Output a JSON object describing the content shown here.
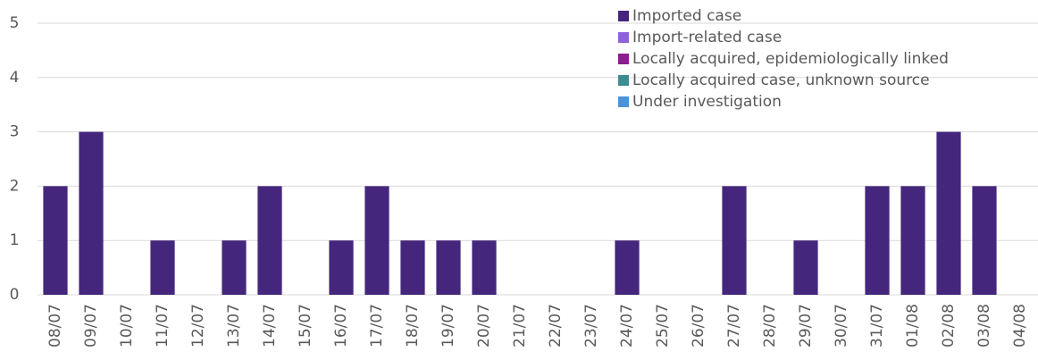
{
  "chart_data": {
    "type": "stacked_bar",
    "categories": [
      "08/07",
      "09/07",
      "10/07",
      "11/07",
      "12/07",
      "13/07",
      "14/07",
      "15/07",
      "16/07",
      "17/07",
      "18/07",
      "19/07",
      "20/07",
      "21/07",
      "22/07",
      "23/07",
      "24/07",
      "25/07",
      "26/07",
      "27/07",
      "28/07",
      "29/07",
      "30/07",
      "31/07",
      "01/08",
      "02/08",
      "03/08",
      "04/08"
    ],
    "series": [
      {
        "name": "Imported case",
        "color": "#44277c",
        "values": [
          2,
          3,
          0,
          1,
          0,
          1,
          2,
          0,
          1,
          2,
          1,
          1,
          1,
          0,
          0,
          0,
          1,
          0,
          0,
          2,
          0,
          1,
          0,
          2,
          2,
          3,
          2,
          0
        ]
      },
      {
        "name": "Import-related case",
        "color": "#8e63d8",
        "values": [
          0,
          0,
          0,
          0,
          0,
          0,
          0,
          0,
          0,
          0,
          0,
          0,
          0,
          0,
          0,
          0,
          0,
          0,
          0,
          0,
          0,
          0,
          0,
          0,
          0,
          0,
          0,
          0
        ]
      },
      {
        "name": "Locally acquired, epidemiologically linked",
        "color": "#8c1d8c",
        "values": [
          0,
          0,
          0,
          0,
          0,
          0,
          0,
          0,
          0,
          0,
          0,
          0,
          0,
          0,
          0,
          0,
          0,
          0,
          0,
          0,
          0,
          0,
          0,
          0,
          0,
          0,
          0,
          0
        ]
      },
      {
        "name": "Locally acquired case, unknown source",
        "color": "#3c8c90",
        "values": [
          0,
          0,
          0,
          0,
          0,
          0,
          0,
          0,
          0,
          0,
          0,
          0,
          0,
          0,
          0,
          0,
          0,
          0,
          0,
          0,
          0,
          0,
          0,
          0,
          0,
          0,
          0,
          0
        ]
      },
      {
        "name": "Under investigation",
        "color": "#4a93dc",
        "values": [
          0,
          0,
          0,
          0,
          0,
          0,
          0,
          0,
          0,
          0,
          0,
          0,
          0,
          0,
          0,
          0,
          0,
          0,
          0,
          0,
          0,
          0,
          0,
          0,
          0,
          0,
          0,
          0
        ]
      }
    ],
    "ylim": [
      0,
      5
    ],
    "yticks": [
      0,
      1,
      2,
      3,
      4,
      5
    ],
    "grid": true,
    "legend": "top-right"
  }
}
